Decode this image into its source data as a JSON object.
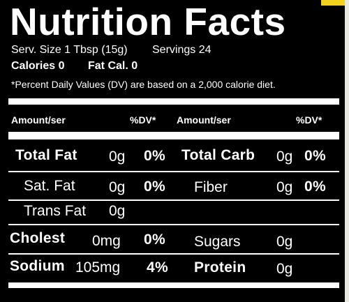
{
  "title": "Nutrition Facts",
  "serving": {
    "size": "Serv. Size 1 Tbsp (15g)",
    "servings": "Servings 24",
    "calories": "Calories 0",
    "fat_calories": "Fat Cal. 0"
  },
  "footnote": "*Percent Daily Values (DV) are based on a 2,000 calorie diet.",
  "header": [
    "Amount/ser",
    "%DV*",
    "Amount/ser",
    "%DV*"
  ],
  "rows": [
    {
      "left": {
        "label": "Total Fat",
        "amount": "0g",
        "dv": "0%"
      },
      "right": {
        "label": "Total Carb",
        "amount": "0g",
        "dv": "0%"
      }
    },
    {
      "left": {
        "label": "Sat. Fat",
        "amount": "0g",
        "dv": "0%"
      },
      "right": {
        "label": "Fiber",
        "amount": "0g",
        "dv": "0%"
      }
    },
    {
      "left": {
        "label": "Trans Fat",
        "amount": "0g"
      }
    },
    {
      "left": {
        "label": "Cholest",
        "amount": "0mg",
        "dv": "0%"
      },
      "right": {
        "label": "Sugars",
        "amount": "0g"
      }
    },
    {
      "left": {
        "label": "Sodium",
        "amount": "105mg",
        "dv": "4%"
      },
      "right": {
        "label": "Protein",
        "amount": "0g"
      }
    }
  ]
}
